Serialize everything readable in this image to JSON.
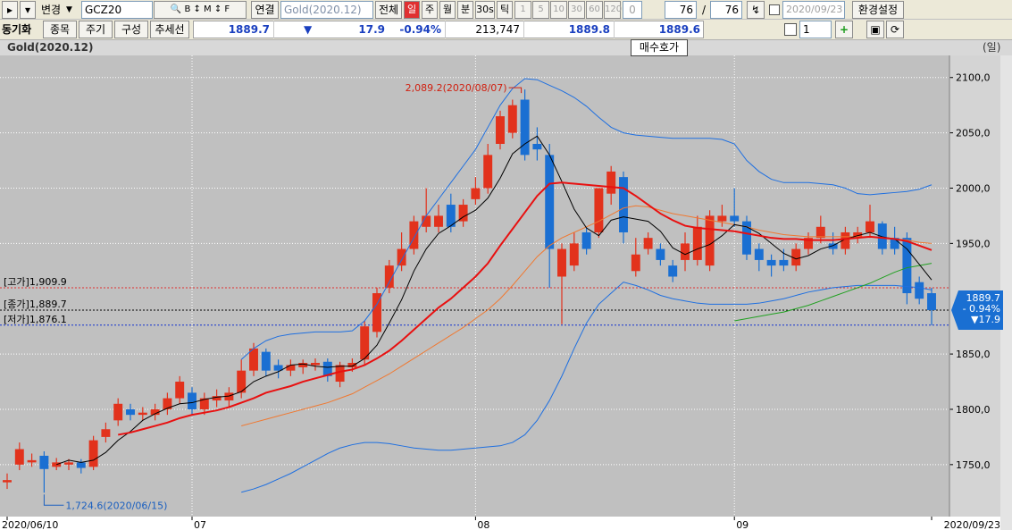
{
  "toolbar": {
    "change": "변경",
    "code": "GCZ20",
    "link": "연결",
    "name": "Gold(2020.12)",
    "all": "전체",
    "periods": [
      "일",
      "주",
      "월",
      "분",
      "30s",
      "틱"
    ],
    "intervals": [
      "1",
      "5",
      "10",
      "30",
      "60",
      "120"
    ],
    "zero": "0",
    "count": "76",
    "sep": "/",
    "total": "76",
    "date": "2020/09/23",
    "settings": "환경설정"
  },
  "infobar": {
    "sync": "동기화",
    "buttons": [
      "종목",
      "주기",
      "구성",
      "추세선"
    ],
    "price": "1889.7",
    "arrow": "▼",
    "change": "17.9",
    "rate": "-0.94%",
    "volume": "213,747",
    "ask": "1889.8",
    "bid": "1889.6",
    "count": "1"
  },
  "tooltip": "매수호가",
  "chart_data": {
    "type": "candlestick",
    "title": "Gold(2020.12)",
    "period_label": "(일)",
    "categories": [
      "2020/06/10",
      null,
      null,
      null,
      null,
      null,
      null,
      null,
      null,
      null,
      null,
      null,
      null,
      null,
      null,
      "07",
      null,
      null,
      null,
      null,
      null,
      null,
      null,
      null,
      null,
      null,
      null,
      null,
      null,
      null,
      null,
      null,
      null,
      null,
      null,
      null,
      null,
      null,
      "08",
      null,
      null,
      null,
      null,
      null,
      null,
      null,
      null,
      null,
      null,
      null,
      null,
      null,
      null,
      null,
      null,
      null,
      null,
      null,
      null,
      "09",
      null,
      null,
      null,
      null,
      null,
      null,
      null,
      null,
      null,
      null,
      null,
      null,
      null,
      null,
      null,
      "2020/09/23"
    ],
    "open": [
      1734,
      1750,
      1752,
      1758,
      1748,
      1750,
      1752,
      1748,
      1775,
      1790,
      1800,
      1795,
      1795,
      1800,
      1810,
      1815,
      1800,
      1808,
      1808,
      1815,
      1835,
      1852,
      1840,
      1835,
      1838,
      1840,
      1843,
      1825,
      1838,
      1845,
      1870,
      1910,
      1930,
      1945,
      1965,
      1965,
      1985,
      1970,
      1990,
      2000,
      2040,
      2050,
      2080,
      2040,
      2030,
      1920,
      1930,
      1960,
      1960,
      1995,
      2010,
      1925,
      1945,
      1945,
      1930,
      1935,
      1935,
      1930,
      1970,
      1975,
      1970,
      1945,
      1935,
      1935,
      1930,
      1945,
      1955,
      1950,
      1945,
      1955,
      1960,
      1968,
      1955,
      1955,
      1915,
      1905
    ],
    "high": [
      1742,
      1770,
      1760,
      1762,
      1756,
      1755,
      1755,
      1776,
      1788,
      1810,
      1805,
      1802,
      1805,
      1815,
      1830,
      1820,
      1815,
      1818,
      1820,
      1845,
      1860,
      1855,
      1845,
      1845,
      1845,
      1846,
      1846,
      1843,
      1846,
      1880,
      1910,
      1935,
      1960,
      1975,
      2000,
      1985,
      1995,
      1990,
      2010,
      2040,
      2070,
      2080,
      2089.2,
      2055,
      2040,
      1950,
      1960,
      1965,
      2000,
      2020,
      2015,
      1955,
      1960,
      1950,
      1935,
      1960,
      1975,
      1980,
      1985,
      2000,
      1975,
      1950,
      1940,
      1945,
      1950,
      1960,
      1975,
      1960,
      1965,
      1965,
      1985,
      1970,
      1965,
      1960,
      1920,
      1909.9
    ],
    "low": [
      1728,
      1745,
      1748,
      1724.6,
      1745,
      1745,
      1742,
      1745,
      1770,
      1785,
      1790,
      1790,
      1790,
      1795,
      1805,
      1795,
      1795,
      1802,
      1802,
      1810,
      1830,
      1830,
      1828,
      1830,
      1832,
      1835,
      1825,
      1820,
      1834,
      1840,
      1865,
      1905,
      1925,
      1940,
      1960,
      1960,
      1960,
      1965,
      1985,
      1995,
      2035,
      2045,
      2025,
      2025,
      1910,
      1877,
      1925,
      1940,
      1955,
      1985,
      1950,
      1920,
      1940,
      1930,
      1915,
      1925,
      1930,
      1925,
      1965,
      1965,
      1935,
      1925,
      1920,
      1925,
      1925,
      1940,
      1950,
      1940,
      1940,
      1950,
      1955,
      1940,
      1940,
      1895,
      1895,
      1876.1
    ],
    "close": [
      1736,
      1764,
      1754,
      1746,
      1752,
      1752,
      1747,
      1772,
      1782,
      1805,
      1795,
      1797,
      1800,
      1810,
      1825,
      1800,
      1810,
      1812,
      1815,
      1835,
      1855,
      1835,
      1835,
      1840,
      1842,
      1842,
      1830,
      1840,
      1842,
      1875,
      1905,
      1930,
      1945,
      1970,
      1975,
      1975,
      1965,
      1985,
      2000,
      2030,
      2065,
      2075,
      2030,
      2035,
      1945,
      1945,
      1950,
      1945,
      2000,
      2015,
      1960,
      1940,
      1955,
      1935,
      1920,
      1950,
      1965,
      1975,
      1975,
      1970,
      1940,
      1935,
      1930,
      1930,
      1945,
      1955,
      1965,
      1945,
      1960,
      1960,
      1970,
      1945,
      1945,
      1905,
      1900,
      1889.7
    ],
    "up_color": "#e2321c",
    "down_color": "#1a6fd2",
    "lines": [
      {
        "color": "#1e6fe0",
        "values": [
          null,
          null,
          null,
          null,
          null,
          null,
          null,
          null,
          null,
          null,
          null,
          null,
          null,
          null,
          null,
          null,
          null,
          null,
          null,
          1845,
          1855,
          1862,
          1866,
          1868,
          1869,
          1870,
          1870,
          1870,
          1871,
          1880,
          1895,
          1915,
          1935,
          1955,
          1975,
          1990,
          2005,
          2020,
          2035,
          2055,
          2075,
          2090,
          2099,
          2098,
          2093,
          2088,
          2082,
          2074,
          2064,
          2055,
          2050,
          2048,
          2047,
          2046,
          2045,
          2045,
          2045,
          2045,
          2044,
          2040,
          2025,
          2015,
          2008,
          2005,
          2005,
          2005,
          2004,
          2003,
          2000,
          1995,
          1994,
          1995,
          1996,
          1997,
          1999,
          2003
        ]
      },
      {
        "color": "#1e6fe0",
        "values": [
          null,
          null,
          null,
          null,
          null,
          null,
          null,
          null,
          null,
          null,
          null,
          null,
          null,
          null,
          null,
          null,
          null,
          null,
          null,
          1725,
          1728,
          1732,
          1737,
          1742,
          1748,
          1754,
          1760,
          1765,
          1768,
          1770,
          1770,
          1769,
          1767,
          1765,
          1764,
          1763,
          1763,
          1764,
          1765,
          1766,
          1767,
          1770,
          1777,
          1790,
          1808,
          1830,
          1855,
          1878,
          1895,
          1905,
          1915,
          1912,
          1908,
          1903,
          1900,
          1898,
          1896,
          1895,
          1895,
          1895,
          1895,
          1896,
          1898,
          1900,
          1903,
          1906,
          1908,
          1910,
          1911,
          1912,
          1912,
          1912,
          1912,
          1911,
          1910,
          1908
        ]
      },
      {
        "color": "#f07830",
        "values": [
          null,
          null,
          null,
          null,
          null,
          null,
          null,
          null,
          null,
          null,
          null,
          null,
          null,
          null,
          null,
          null,
          null,
          null,
          null,
          1785,
          1788,
          1791,
          1794,
          1797,
          1800,
          1803,
          1806,
          1810,
          1814,
          1820,
          1826,
          1832,
          1839,
          1846,
          1853,
          1860,
          1867,
          1874,
          1882,
          1890,
          1900,
          1912,
          1925,
          1938,
          1948,
          1955,
          1960,
          1965,
          1970,
          1976,
          1982,
          1984,
          1983,
          1980,
          1977,
          1975,
          1973,
          1971,
          1969,
          1967,
          1965,
          1962,
          1960,
          1958,
          1957,
          1956,
          1956,
          1956,
          1956,
          1956,
          1956,
          1955,
          1954,
          1953,
          1951,
          1950
        ]
      },
      {
        "color": "#20a020",
        "values": [
          null,
          null,
          null,
          null,
          null,
          null,
          null,
          null,
          null,
          null,
          null,
          null,
          null,
          null,
          null,
          null,
          null,
          null,
          null,
          null,
          null,
          null,
          null,
          null,
          null,
          null,
          null,
          null,
          null,
          null,
          null,
          null,
          null,
          null,
          null,
          null,
          null,
          null,
          null,
          null,
          null,
          null,
          null,
          null,
          null,
          null,
          null,
          null,
          null,
          null,
          null,
          null,
          null,
          null,
          null,
          null,
          null,
          null,
          null,
          1880,
          1882,
          1884,
          1886,
          1888,
          1891,
          1894,
          1898,
          1902,
          1906,
          1910,
          1914,
          1919,
          1924,
          1928,
          1930,
          1932
        ]
      },
      {
        "color": "#000000",
        "values": [
          null,
          null,
          null,
          null,
          1750,
          1754,
          1752,
          1754,
          1761,
          1772,
          1780,
          1790,
          1796,
          1801,
          1805,
          1806,
          1809,
          1811,
          1812,
          1816,
          1825,
          1830,
          1834,
          1840,
          1841,
          1839,
          1838,
          1839,
          1839,
          1846,
          1858,
          1878,
          1899,
          1925,
          1945,
          1959,
          1966,
          1974,
          1980,
          1991,
          2009,
          2031,
          2040,
          2047,
          2030,
          2006,
          1981,
          1964,
          1957,
          1971,
          1974,
          1972,
          1970,
          1961,
          1946,
          1940,
          1945,
          1949,
          1957,
          1967,
          1965,
          1959,
          1950,
          1941,
          1936,
          1939,
          1945,
          1948,
          1954,
          1957,
          1960,
          1956,
          1954,
          1945,
          1931,
          1917
        ]
      },
      {
        "color": "#e81010",
        "values": [
          null,
          null,
          null,
          null,
          null,
          null,
          null,
          null,
          null,
          1777,
          1779,
          1782,
          1785,
          1788,
          1792,
          1795,
          1797,
          1799,
          1802,
          1806,
          1810,
          1815,
          1818,
          1821,
          1825,
          1828,
          1831,
          1834,
          1836,
          1840,
          1846,
          1853,
          1862,
          1872,
          1882,
          1892,
          1900,
          1910,
          1920,
          1932,
          1948,
          1963,
          1978,
          1993,
          2004,
          2005,
          2004,
          2003,
          2002,
          2001,
          2000,
          1993,
          1985,
          1977,
          1971,
          1966,
          1964,
          1963,
          1962,
          1961,
          1959,
          1957,
          1955,
          1954,
          1954,
          1953,
          1953,
          1953,
          1954,
          1955,
          1956,
          1955,
          1954,
          1952,
          1948,
          1944
        ]
      }
    ],
    "ylim": [
      1703,
      2120
    ],
    "yticks": [
      {
        "value": 2100,
        "label": "2100,0"
      },
      {
        "value": 2050,
        "label": "2050,0"
      },
      {
        "value": 2000,
        "label": "2000,0"
      },
      {
        "value": 1950,
        "label": "1950,0"
      },
      {
        "value": 1850,
        "label": "1850,0"
      },
      {
        "value": 1800,
        "label": "1800,0"
      },
      {
        "value": 1750,
        "label": "1750,0"
      }
    ],
    "grid": true,
    "reference_lines": [
      {
        "label": "[고가]1,909.9",
        "value": 1909.9,
        "color": "#e03030"
      },
      {
        "label": "[종가]1,889.7",
        "value": 1889.7,
        "color": "#000000"
      },
      {
        "label": "[저가]1,876.1",
        "value": 1876.1,
        "color": "#1030d0"
      }
    ],
    "annotations": [
      {
        "label": "2,089.2(2020/08/07)",
        "value": 2089.2,
        "color": "#d02010"
      },
      {
        "label": "1,724.6(2020/06/15)",
        "value": 1724.6,
        "color": "#1a5fc0"
      }
    ],
    "price_box": {
      "value": 1889.7,
      "texts": [
        "1889.7",
        "- 0.94%",
        "▼17.9"
      ],
      "color": "#1a6fd2"
    }
  }
}
